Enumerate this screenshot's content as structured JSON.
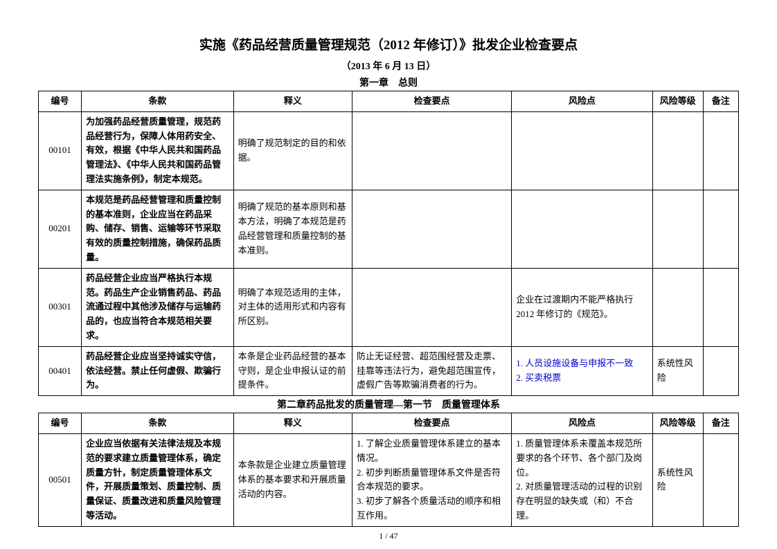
{
  "doc": {
    "title": "实施《药品经营质量管理规范（2012 年修订）》批发企业检查要点",
    "date": "（2013 年 6 月 13 日）",
    "chapter1": "第一章　总则",
    "chapter2": "第二章药品批发的质量管理—第一节　质量管理体系",
    "pager": "1 / 47"
  },
  "headers": {
    "num": "编号",
    "clause": "条款",
    "interp": "释义",
    "check": "检查要点",
    "risk": "风险点",
    "level": "风险等级",
    "remark": "备注"
  },
  "rows1": [
    {
      "num": "00101",
      "clause": "为加强药品经营质量管理，规范药品经营行为，保障人体用药安全、有效，根据《中华人民共和国药品管理法》、《中华人民共和国药品管理法实施条例》，制定本规范。",
      "interp": "明确了规范制定的目的和依据。",
      "check": "",
      "risk": "",
      "level": "",
      "remark": ""
    },
    {
      "num": "00201",
      "clause": "本规范是药品经营管理和质量控制的基本准则，企业应当在药品采购、储存、销售、运输等环节采取有效的质量控制措施，确保药品质量。",
      "interp": "明确了规范的基本原则和基本方法，明确了本规范是药品经营管理和质量控制的基本准则。",
      "check": "",
      "risk": "",
      "level": "",
      "remark": ""
    },
    {
      "num": "00301",
      "clause": "药品经营企业应当严格执行本规范。药品生产企业销售药品、药品流通过程中其他涉及储存与运输药品的，也应当符合本规范相关要求。",
      "interp": "明确了本规范适用的主体，对主体的适用形式和内容有所区别。",
      "check": "",
      "risk": "企业在过渡期内不能严格执行2012 年修订的《规范》。",
      "level": "",
      "remark": ""
    },
    {
      "num": "00401",
      "clause": "药品经营企业应当坚持诚实守信，依法经营。禁止任何虚假、欺骗行为。",
      "interp": "本条是企业药品经营的基本守则，是企业申报认证的前提条件。",
      "check": "防止无证经营、超范围经营及走票、挂靠等违法行为，避免超范围宣传，虚假广告等欺骗消费者的行为。",
      "risk_items": [
        "1. 人员设施设备与申报不一致",
        "2. 买卖税票"
      ],
      "level": "系统性风险",
      "remark": ""
    }
  ],
  "rows2": [
    {
      "num": "00501",
      "clause": "企业应当依据有关法律法规及本规范的要求建立质量管理体系，确定质量方针，制定质量管理体系文件，开展质量策划、质量控制、质量保证、质量改进和质量风险管理等活动。",
      "interp": "本条款是企业建立质量管理体系的基本要求和开展质量活动的内容。",
      "check_items": [
        "1. 了解企业质量管理体系建立的基本情况。",
        "2. 初步判断质量管理体系文件是否符合本规范的要求。",
        "3. 初步了解各个质量活动的顺序和相互作用。"
      ],
      "risk_items": [
        "1. 质量管理体系未覆盖本规范所要求的各个环节、各个部门及岗位。",
        "2. 对质量管理活动的过程的识别存在明显的缺失或（和）不合理。"
      ],
      "level": "系统性风险",
      "remark": ""
    }
  ]
}
